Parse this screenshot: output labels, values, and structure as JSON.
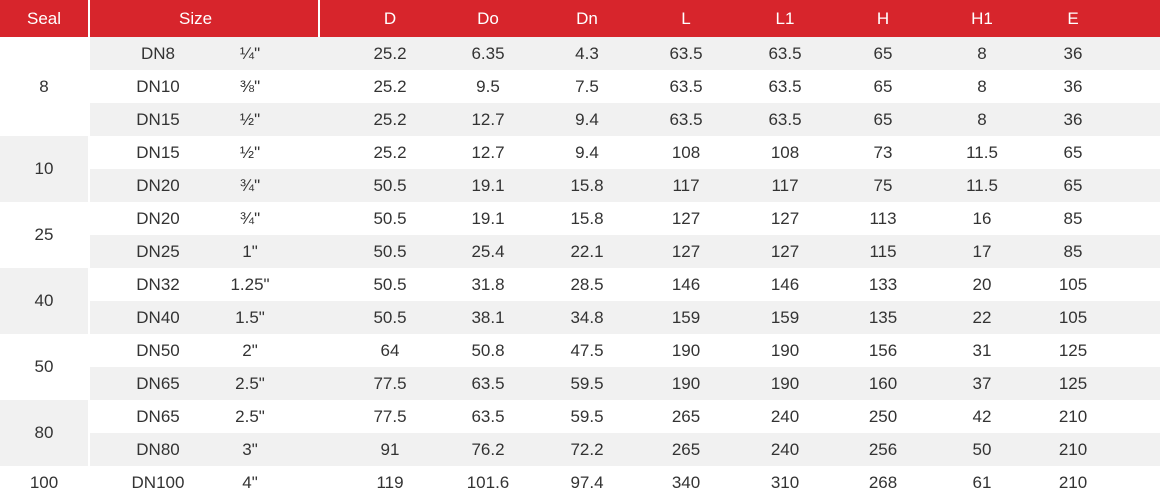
{
  "headers": {
    "seal": "Seal",
    "size": "Size",
    "cols": [
      "D",
      "Do",
      "Dn",
      "L",
      "L1",
      "H",
      "H1",
      "E"
    ]
  },
  "groups": [
    {
      "seal": "8",
      "shade": false,
      "rows": [
        {
          "dn": "DN8",
          "inch": "¼\"",
          "vals": [
            "25.2",
            "6.35",
            "4.3",
            "63.5",
            "63.5",
            "65",
            "8",
            "36"
          ]
        },
        {
          "dn": "DN10",
          "inch": "⅜\"",
          "vals": [
            "25.2",
            "9.5",
            "7.5",
            "63.5",
            "63.5",
            "65",
            "8",
            "36"
          ]
        },
        {
          "dn": "DN15",
          "inch": "½\"",
          "vals": [
            "25.2",
            "12.7",
            "9.4",
            "63.5",
            "63.5",
            "65",
            "8",
            "36"
          ]
        }
      ]
    },
    {
      "seal": "10",
      "shade": true,
      "rows": [
        {
          "dn": "DN15",
          "inch": "½\"",
          "vals": [
            "25.2",
            "12.7",
            "9.4",
            "108",
            "108",
            "73",
            "11.5",
            "65"
          ]
        },
        {
          "dn": "DN20",
          "inch": "¾\"",
          "vals": [
            "50.5",
            "19.1",
            "15.8",
            "117",
            "117",
            "75",
            "11.5",
            "65"
          ]
        }
      ]
    },
    {
      "seal": "25",
      "shade": false,
      "rows": [
        {
          "dn": "DN20",
          "inch": "¾\"",
          "vals": [
            "50.5",
            "19.1",
            "15.8",
            "127",
            "127",
            "113",
            "16",
            "85"
          ]
        },
        {
          "dn": "DN25",
          "inch": "1\"",
          "vals": [
            "50.5",
            "25.4",
            "22.1",
            "127",
            "127",
            "115",
            "17",
            "85"
          ]
        }
      ]
    },
    {
      "seal": "40",
      "shade": true,
      "rows": [
        {
          "dn": "DN32",
          "inch": "1.25\"",
          "vals": [
            "50.5",
            "31.8",
            "28.5",
            "146",
            "146",
            "133",
            "20",
            "105"
          ]
        },
        {
          "dn": "DN40",
          "inch": "1.5\"",
          "vals": [
            "50.5",
            "38.1",
            "34.8",
            "159",
            "159",
            "135",
            "22",
            "105"
          ]
        }
      ]
    },
    {
      "seal": "50",
      "shade": false,
      "rows": [
        {
          "dn": "DN50",
          "inch": "2\"",
          "vals": [
            "64",
            "50.8",
            "47.5",
            "190",
            "190",
            "156",
            "31",
            "125"
          ]
        },
        {
          "dn": "DN65",
          "inch": "2.5\"",
          "vals": [
            "77.5",
            "63.5",
            "59.5",
            "190",
            "190",
            "160",
            "37",
            "125"
          ]
        }
      ]
    },
    {
      "seal": "80",
      "shade": true,
      "rows": [
        {
          "dn": "DN65",
          "inch": "2.5\"",
          "vals": [
            "77.5",
            "63.5",
            "59.5",
            "265",
            "240",
            "250",
            "42",
            "210"
          ]
        },
        {
          "dn": "DN80",
          "inch": "3\"",
          "vals": [
            "91",
            "76.2",
            "72.2",
            "265",
            "240",
            "256",
            "50",
            "210"
          ]
        }
      ]
    },
    {
      "seal": "100",
      "shade": false,
      "rows": [
        {
          "dn": "DN100",
          "inch": "4\"",
          "vals": [
            "119",
            "101.6",
            "97.4",
            "340",
            "310",
            "268",
            "61",
            "210"
          ]
        }
      ]
    }
  ],
  "colors": {
    "header_bg": "#d7252c",
    "shade_bg": "#f1f1f1"
  }
}
